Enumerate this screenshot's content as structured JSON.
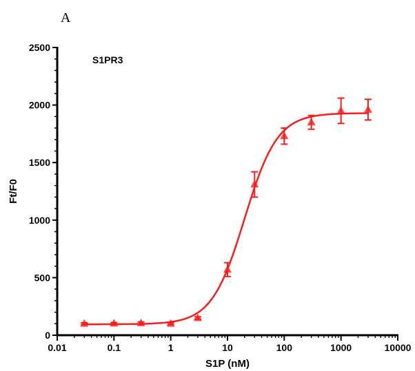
{
  "panel_label": "A",
  "chart_data": {
    "type": "scatter",
    "title": "",
    "annotation": "S1PR3",
    "xlabel": "S1P (nM)",
    "ylabel": "Ft/F0",
    "xscale": "log",
    "xlim": [
      0.01,
      10000
    ],
    "ylim": [
      0,
      2500
    ],
    "x_ticks": [
      0.01,
      0.1,
      1,
      10,
      100,
      1000,
      10000
    ],
    "x_tick_labels": [
      "0.01",
      "0.1",
      "1",
      "10",
      "100",
      "1000",
      "10000"
    ],
    "y_ticks": [
      0,
      500,
      1000,
      1500,
      2000,
      2500
    ],
    "y_tick_labels": [
      "0",
      "500",
      "1000",
      "1500",
      "2000",
      "2500"
    ],
    "grid": false,
    "legend": "none",
    "color": "#ff1a1a",
    "marker": "triangle",
    "fit": "sigmoidal dose-response",
    "fit_params": {
      "bottom": 95,
      "top": 1930,
      "ec50": 20,
      "hill": 1.5
    },
    "series": [
      {
        "x": [
          0.03,
          0.1,
          0.3,
          1,
          3,
          10,
          30,
          100,
          300,
          1000,
          3000
        ],
        "y": [
          100,
          102,
          105,
          100,
          150,
          570,
          1310,
          1730,
          1850,
          1950,
          1960
        ],
        "error": [
          8,
          8,
          10,
          8,
          10,
          60,
          110,
          70,
          60,
          110,
          90
        ]
      }
    ]
  }
}
